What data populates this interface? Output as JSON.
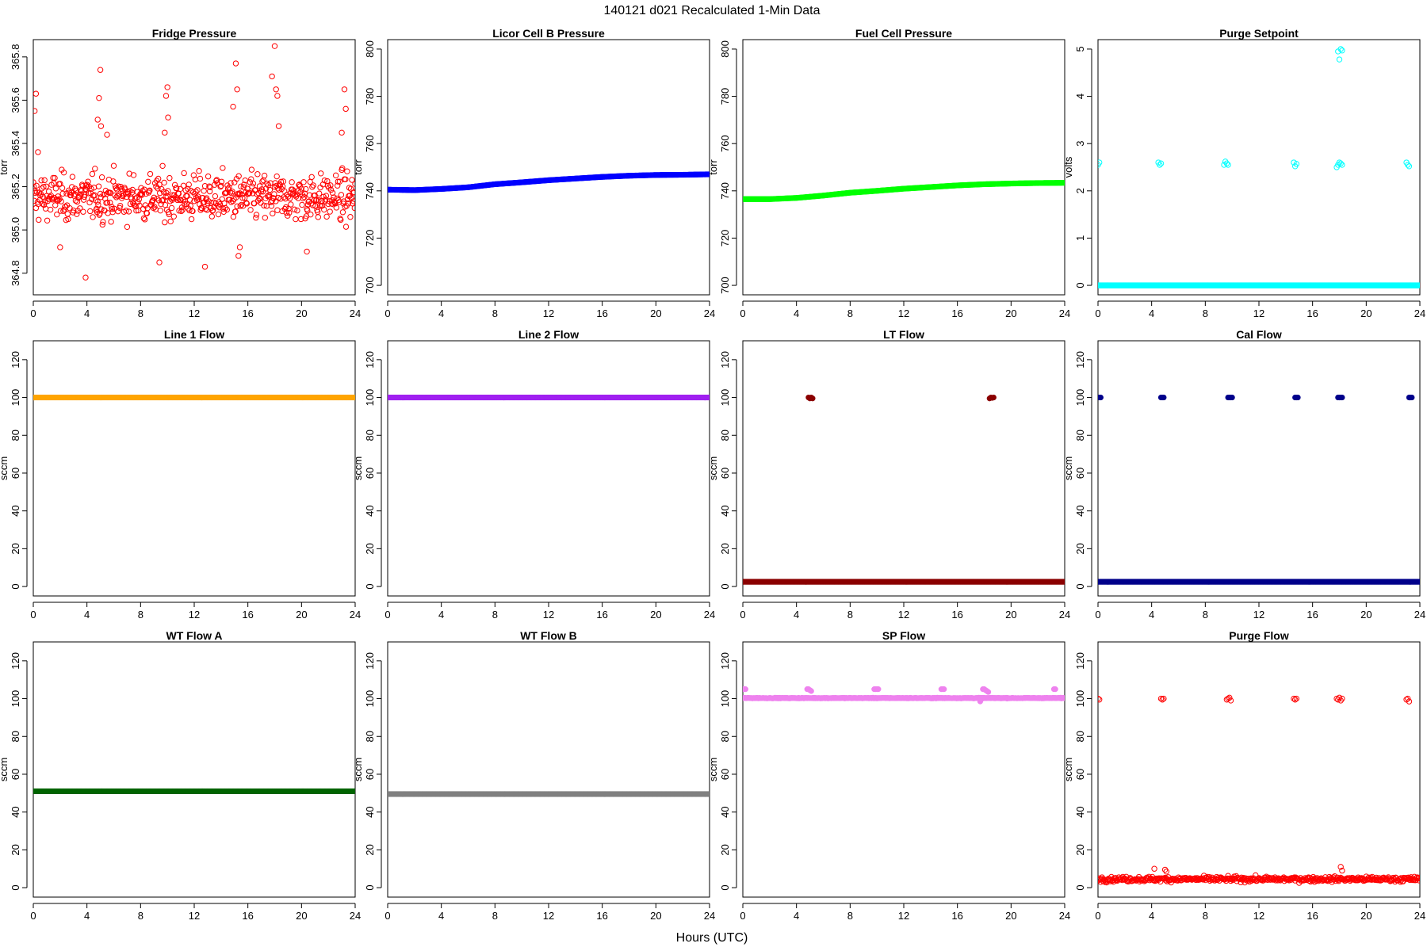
{
  "figure": {
    "title": "140121   d021   Recalculated 1-Min Data",
    "xlabel": "Hours (UTC)"
  },
  "chart_data": [
    {
      "type": "scatter",
      "title": "Fridge Pressure",
      "xlabel": "",
      "ylabel": "torr",
      "xlim": [
        0,
        24
      ],
      "ylim": [
        364.7,
        365.88
      ],
      "xticks": [
        0,
        4,
        8,
        12,
        16,
        20,
        24
      ],
      "yticks": [
        364.8,
        365.0,
        365.2,
        365.4,
        365.6,
        365.8
      ],
      "ytick_labels": [
        "364.8",
        "365.0",
        "365.2",
        "365.4",
        "365.6",
        "365.8"
      ],
      "color": "#ff0000",
      "marker": "open-circle",
      "series": [
        {
          "description": "noisy 1-min values around 365.15 with spikes",
          "base": 365.15,
          "noise": 0.09,
          "x": [
            0.1,
            0.2,
            0.35,
            2.0,
            3.9,
            4.8,
            4.9,
            5.0,
            5.05,
            5.5,
            9.4,
            9.8,
            9.9,
            10.0,
            10.05,
            12.8,
            14.9,
            15.1,
            15.2,
            15.3,
            15.4,
            15.6,
            17.8,
            18.0,
            18.1,
            18.2,
            18.3,
            20.4,
            23.0,
            23.2,
            23.3
          ],
          "y": [
            365.55,
            365.63,
            365.36,
            364.92,
            364.78,
            365.51,
            365.61,
            365.74,
            365.48,
            365.44,
            364.85,
            365.45,
            365.62,
            365.66,
            365.52,
            364.83,
            365.57,
            365.77,
            365.65,
            364.88,
            364.92,
            364.65,
            365.71,
            365.85,
            365.65,
            365.62,
            365.48,
            364.9,
            365.45,
            365.65,
            365.56
          ]
        }
      ]
    },
    {
      "type": "scatter",
      "title": "Licor Cell B Pressure",
      "xlabel": "",
      "ylabel": "torr",
      "xlim": [
        0,
        24
      ],
      "ylim": [
        696,
        804
      ],
      "xticks": [
        0,
        4,
        8,
        12,
        16,
        20,
        24
      ],
      "yticks": [
        700,
        720,
        740,
        760,
        780,
        800
      ],
      "ytick_labels": [
        "700",
        "720",
        "740",
        "760",
        "780",
        "800"
      ],
      "color": "#0000ff",
      "marker": "filled-circle",
      "series": [
        {
          "x": [
            0,
            2,
            4,
            6,
            8,
            10,
            12,
            14,
            16,
            18,
            20,
            22,
            24
          ],
          "y": [
            740.5,
            740.3,
            740.8,
            741.5,
            742.8,
            743.6,
            744.5,
            745.2,
            745.9,
            746.4,
            746.7,
            746.8,
            747.0
          ]
        }
      ]
    },
    {
      "type": "scatter",
      "title": "Fuel Cell Pressure",
      "xlabel": "",
      "ylabel": "torr",
      "xlim": [
        0,
        24
      ],
      "ylim": [
        696,
        804
      ],
      "xticks": [
        0,
        4,
        8,
        12,
        16,
        20,
        24
      ],
      "yticks": [
        700,
        720,
        740,
        760,
        780,
        800
      ],
      "ytick_labels": [
        "700",
        "720",
        "740",
        "760",
        "780",
        "800"
      ],
      "color": "#00ff00",
      "marker": "filled-circle",
      "series": [
        {
          "x": [
            0,
            2,
            4,
            6,
            8,
            10,
            12,
            14,
            16,
            18,
            20,
            22,
            24
          ],
          "y": [
            736.5,
            736.5,
            737.0,
            738.0,
            739.2,
            740.0,
            740.9,
            741.6,
            742.3,
            742.8,
            743.1,
            743.3,
            743.4
          ]
        }
      ]
    },
    {
      "type": "scatter",
      "title": "Purge Setpoint",
      "xlabel": "",
      "ylabel": "volts",
      "xlim": [
        0,
        24
      ],
      "ylim": [
        -0.2,
        5.2
      ],
      "xticks": [
        0,
        4,
        8,
        12,
        16,
        20,
        24
      ],
      "yticks": [
        0,
        1,
        2,
        3,
        4,
        5
      ],
      "ytick_labels": [
        "0",
        "1",
        "2",
        "3",
        "4",
        "5"
      ],
      "color": "#00ffff",
      "marker": "open-circle",
      "series": [
        {
          "baseline": 0,
          "x": [
            0.0,
            0.1,
            4.5,
            4.6,
            4.7,
            9.4,
            9.5,
            9.6,
            9.7,
            14.6,
            14.7,
            14.8,
            17.8,
            17.9,
            18.0,
            18.1,
            18.2,
            17.9,
            18.0,
            18.1,
            18.2,
            23.0,
            23.1,
            23.2
          ],
          "y": [
            2.55,
            2.6,
            2.6,
            2.55,
            2.58,
            2.55,
            2.62,
            2.58,
            2.55,
            2.6,
            2.52,
            2.57,
            2.5,
            2.55,
            2.6,
            2.58,
            2.55,
            4.95,
            4.78,
            5.0,
            4.97,
            2.6,
            2.55,
            2.52
          ]
        }
      ]
    },
    {
      "type": "scatter",
      "title": "Line 1 Flow",
      "xlabel": "",
      "ylabel": "sccm",
      "xlim": [
        0,
        24
      ],
      "ylim": [
        -5,
        130
      ],
      "xticks": [
        0,
        4,
        8,
        12,
        16,
        20,
        24
      ],
      "yticks": [
        0,
        20,
        40,
        60,
        80,
        100,
        120
      ],
      "ytick_labels": [
        "0",
        "20",
        "40",
        "60",
        "80",
        "100",
        "120"
      ],
      "color": "#ffa500",
      "marker": "filled-circle",
      "series": [
        {
          "x": [
            0,
            24
          ],
          "y": [
            100,
            100
          ]
        }
      ]
    },
    {
      "type": "scatter",
      "title": "Line 2 Flow",
      "xlabel": "",
      "ylabel": "sccm",
      "xlim": [
        0,
        24
      ],
      "ylim": [
        -5,
        130
      ],
      "xticks": [
        0,
        4,
        8,
        12,
        16,
        20,
        24
      ],
      "yticks": [
        0,
        20,
        40,
        60,
        80,
        100,
        120
      ],
      "ytick_labels": [
        "0",
        "20",
        "40",
        "60",
        "80",
        "100",
        "120"
      ],
      "color": "#a020f0",
      "marker": "filled-circle",
      "series": [
        {
          "x": [
            0,
            24
          ],
          "y": [
            100,
            100
          ]
        }
      ]
    },
    {
      "type": "scatter",
      "title": "LT Flow",
      "xlabel": "",
      "ylabel": "sccm",
      "xlim": [
        0,
        24
      ],
      "ylim": [
        -5,
        130
      ],
      "xticks": [
        0,
        4,
        8,
        12,
        16,
        20,
        24
      ],
      "yticks": [
        0,
        20,
        40,
        60,
        80,
        100,
        120
      ],
      "ytick_labels": [
        "0",
        "20",
        "40",
        "60",
        "80",
        "100",
        "120"
      ],
      "color": "#8b0000",
      "marker": "filled-circle",
      "series": [
        {
          "baseline": 2.5,
          "x": [
            4.9,
            5.0,
            5.1,
            5.2,
            18.4,
            18.5,
            18.6,
            18.7
          ],
          "y": [
            100,
            99.5,
            100,
            99.5,
            99.5,
            100,
            99.8,
            100
          ]
        }
      ]
    },
    {
      "type": "scatter",
      "title": "Cal Flow",
      "xlabel": "",
      "ylabel": "sccm",
      "xlim": [
        0,
        24
      ],
      "ylim": [
        -5,
        130
      ],
      "xticks": [
        0,
        4,
        8,
        12,
        16,
        20,
        24
      ],
      "yticks": [
        0,
        20,
        40,
        60,
        80,
        100,
        120
      ],
      "ytick_labels": [
        "0",
        "20",
        "40",
        "60",
        "80",
        "100",
        "120"
      ],
      "color": "#00008b",
      "marker": "filled-circle",
      "series": [
        {
          "baseline": 2.5,
          "x": [
            0.1,
            0.2,
            4.7,
            4.8,
            4.9,
            9.7,
            9.8,
            9.9,
            10.0,
            14.7,
            14.8,
            14.9,
            17.9,
            18.0,
            18.1,
            18.2,
            23.2,
            23.3,
            23.4
          ],
          "y": [
            100,
            100,
            100,
            100,
            100,
            100,
            100,
            100,
            100,
            100,
            100,
            100,
            100,
            100,
            100,
            100,
            100,
            100,
            100
          ]
        }
      ]
    },
    {
      "type": "scatter",
      "title": "WT Flow A",
      "xlabel": "",
      "ylabel": "sccm",
      "xlim": [
        0,
        24
      ],
      "ylim": [
        -5,
        130
      ],
      "xticks": [
        0,
        4,
        8,
        12,
        16,
        20,
        24
      ],
      "yticks": [
        0,
        20,
        40,
        60,
        80,
        100,
        120
      ],
      "ytick_labels": [
        "0",
        "20",
        "40",
        "60",
        "80",
        "100",
        "120"
      ],
      "color": "#006400",
      "marker": "filled-circle",
      "series": [
        {
          "x": [
            0,
            24
          ],
          "y": [
            51,
            51
          ]
        }
      ]
    },
    {
      "type": "scatter",
      "title": "WT Flow B",
      "xlabel": "",
      "ylabel": "sccm",
      "xlim": [
        0,
        24
      ],
      "ylim": [
        -5,
        130
      ],
      "xticks": [
        0,
        4,
        8,
        12,
        16,
        20,
        24
      ],
      "yticks": [
        0,
        20,
        40,
        60,
        80,
        100,
        120
      ],
      "ytick_labels": [
        "0",
        "20",
        "40",
        "60",
        "80",
        "100",
        "120"
      ],
      "color": "#808080",
      "marker": "filled-circle",
      "series": [
        {
          "x": [
            0,
            24
          ],
          "y": [
            49.5,
            49.5
          ]
        }
      ]
    },
    {
      "type": "scatter",
      "title": "SP Flow",
      "xlabel": "",
      "ylabel": "sccm",
      "xlim": [
        0,
        24
      ],
      "ylim": [
        -5,
        130
      ],
      "xticks": [
        0,
        4,
        8,
        12,
        16,
        20,
        24
      ],
      "yticks": [
        0,
        20,
        40,
        60,
        80,
        100,
        120
      ],
      "ytick_labels": [
        "0",
        "20",
        "40",
        "60",
        "80",
        "100",
        "120"
      ],
      "color": "#ee82ee",
      "marker": "filled-circle",
      "series": [
        {
          "baseline": 100.3,
          "x": [
            0.0,
            0.1,
            0.2,
            4.8,
            4.9,
            5.0,
            5.1,
            9.8,
            9.9,
            10.0,
            10.1,
            14.8,
            14.9,
            15.0,
            17.9,
            18.0,
            18.1,
            18.2,
            18.3,
            23.2,
            23.3,
            17.7
          ],
          "y": [
            105,
            105,
            105,
            105,
            105,
            104.5,
            104,
            105,
            105,
            105,
            105,
            105,
            105,
            105,
            105,
            105,
            104.5,
            104,
            103.5,
            105,
            105,
            98.5
          ]
        }
      ]
    },
    {
      "type": "scatter",
      "title": "Purge Flow",
      "xlabel": "",
      "ylabel": "sccm",
      "xlim": [
        0,
        24
      ],
      "ylim": [
        -5,
        130
      ],
      "xticks": [
        0,
        4,
        8,
        12,
        16,
        20,
        24
      ],
      "yticks": [
        0,
        20,
        40,
        60,
        80,
        100,
        120
      ],
      "ytick_labels": [
        "0",
        "20",
        "40",
        "60",
        "80",
        "100",
        "120"
      ],
      "color": "#ff0000",
      "marker": "open-circle",
      "series": [
        {
          "baseline": 4.5,
          "x": [
            0.0,
            0.1,
            4.7,
            4.8,
            4.9,
            9.6,
            9.7,
            9.8,
            9.9,
            14.6,
            14.7,
            14.8,
            17.8,
            17.9,
            18.0,
            18.1,
            18.2,
            23.0,
            23.1,
            23.2,
            4.2,
            5.0,
            5.1,
            18.1,
            18.2
          ],
          "y": [
            100,
            99.5,
            100,
            99.5,
            100,
            99.5,
            100,
            100.5,
            99,
            100,
            99.5,
            100,
            100,
            99.5,
            100.5,
            99,
            100,
            99.5,
            100,
            98.5,
            10,
            9.5,
            8.5,
            11,
            9
          ]
        }
      ]
    }
  ]
}
